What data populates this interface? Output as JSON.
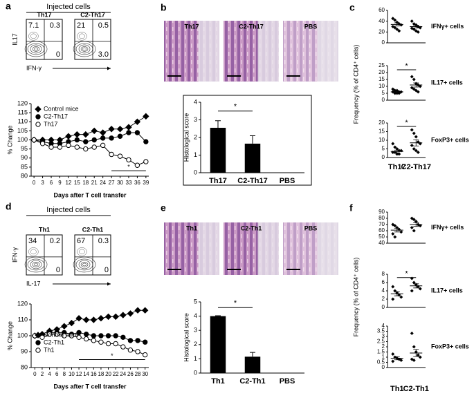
{
  "chart_data": [
    {
      "type": "flow",
      "panel": "a",
      "title": "Injected cells",
      "x_label": "IFN-γ",
      "y_label": "IL17",
      "plots": [
        {
          "name": "Th17",
          "values": [
            7.1,
            0.3,
            0
          ]
        },
        {
          "name": "C2-Th17",
          "values": [
            21,
            0.5,
            3
          ],
          "value_labels": [
            "21",
            "0.5",
            "3.0"
          ]
        }
      ]
    },
    {
      "type": "line",
      "x_label": "Days after T cell transfer",
      "y_label": "% Change",
      "x": [
        0,
        3,
        6,
        9,
        12,
        15,
        18,
        21,
        24,
        27,
        30,
        33,
        36,
        39
      ],
      "xlim": [
        -1,
        40
      ],
      "xticks": [
        0,
        3,
        6,
        9,
        12,
        15,
        18,
        21,
        24,
        27,
        30,
        33,
        36,
        39
      ],
      "ylim": [
        80,
        120
      ],
      "yticks": [
        80,
        85,
        90,
        95,
        100,
        105,
        110,
        115,
        120
      ],
      "legend": "upper left",
      "series": [
        {
          "name": "Control mice",
          "color": "#000000",
          "marker": "diamond",
          "filled": true,
          "values": [
            100,
            100,
            100,
            100,
            102,
            103,
            103,
            105,
            104,
            106,
            106,
            107,
            110,
            113
          ]
        },
        {
          "name": "C2-Th17",
          "color": "#000000",
          "marker": "circle",
          "filled": true,
          "values": [
            100,
            99,
            98,
            98,
            99,
            100,
            99,
            100,
            101,
            101,
            102,
            104,
            104,
            99
          ]
        },
        {
          "name": "Th17",
          "color": "#000000",
          "marker": "circle",
          "filled": false,
          "values": [
            100,
            98,
            96,
            96,
            97,
            96,
            95,
            96,
            97,
            92,
            91,
            89,
            86,
            88
          ]
        }
      ],
      "annotation": "*",
      "annotation_span": [
        27,
        39
      ],
      "annotation_y": 83
    },
    {
      "type": "bar",
      "panel": "b",
      "image_labels": [
        "Th17",
        "C2-Th17",
        "PBS"
      ],
      "y_label": "Histological score",
      "categories": [
        "Th17",
        "C2-Th17",
        "PBS"
      ],
      "values": [
        2.55,
        1.65,
        0
      ],
      "errors": [
        0.4,
        0.45,
        0
      ],
      "color": "#000000",
      "ylim": [
        0,
        4
      ],
      "yticks": [
        0,
        1,
        2,
        3,
        4
      ],
      "frame": true,
      "annotation": "*",
      "annotation_y": 3.5
    },
    {
      "type": "dot",
      "panel": "c",
      "y_label": "Frequency (% of CD4⁺ cells)",
      "categories": [
        "Th17",
        "C2-Th17"
      ],
      "color": "#000000",
      "subplots": [
        {
          "name": "IFNγ+ cells",
          "ylim": [
            0,
            60
          ],
          "yticks": [
            0,
            20,
            40,
            60
          ],
          "groups": [
            [
              45,
              42,
              38,
              35,
              33,
              30,
              28,
              25,
              22
            ],
            [
              40,
              35,
              33,
              30,
              28,
              27,
              25,
              22,
              20
            ]
          ],
          "means": [
            34,
            30
          ],
          "sem": [
            3,
            2.5
          ]
        },
        {
          "name": "IL17+ cells",
          "ylim": [
            0,
            25
          ],
          "yticks": [
            0,
            5,
            10,
            15,
            20,
            25
          ],
          "groups": [
            [
              8,
              7,
              7,
              6,
              6,
              6,
              5,
              5,
              5
            ],
            [
              17,
              15,
              12,
              11,
              10,
              9,
              8,
              7,
              6
            ]
          ],
          "means": [
            6,
            11
          ],
          "sem": [
            0.5,
            1.5
          ],
          "annotation": "*",
          "annotation_y": 22
        },
        {
          "name": "FoxP3+ cells",
          "ylim": [
            0,
            20
          ],
          "yticks": [
            0,
            5,
            10,
            15,
            20
          ],
          "groups": [
            [
              8,
              6,
              5,
              4,
              4,
              3,
              3,
              2,
              2
            ],
            [
              16,
              14,
              12,
              9,
              8,
              7,
              5,
              4,
              3
            ]
          ],
          "means": [
            3.5,
            8.5
          ],
          "sem": [
            0.8,
            1.8
          ],
          "annotation": "*",
          "annotation_y": 18
        }
      ]
    },
    {
      "type": "flow",
      "panel": "d",
      "title": "Injected cells",
      "x_label": "IL-17",
      "y_label": "IFN-γ",
      "plots": [
        {
          "name": "Th1",
          "values": [
            34,
            0.2,
            0
          ]
        },
        {
          "name": "C2-Th1",
          "values": [
            67,
            0.3,
            0
          ]
        }
      ]
    },
    {
      "type": "line",
      "x_label": "Days after T cell transfer",
      "y_label": "% Change",
      "x": [
        0,
        2,
        4,
        6,
        8,
        10,
        12,
        14,
        16,
        18,
        20,
        22,
        24,
        26,
        28,
        30
      ],
      "xlim": [
        -1,
        31
      ],
      "xticks": [
        0,
        2,
        4,
        6,
        8,
        10,
        12,
        14,
        16,
        18,
        20,
        22,
        24,
        26,
        28,
        30
      ],
      "ylim": [
        80,
        120
      ],
      "yticks": [
        80,
        90,
        100,
        110,
        120
      ],
      "legend": "lower left",
      "series": [
        {
          "name": "Control mice",
          "color": "#000000",
          "marker": "diamond",
          "filled": true,
          "values": [
            100,
            101,
            103,
            104,
            106,
            108,
            111,
            110,
            110,
            111,
            112,
            112,
            113,
            114,
            116,
            116
          ]
        },
        {
          "name": "C2-Th1",
          "color": "#000000",
          "marker": "circle",
          "filled": true,
          "values": [
            100,
            100,
            102,
            102,
            102,
            101,
            102,
            101,
            100,
            100,
            100,
            100,
            99,
            97,
            97,
            96
          ]
        },
        {
          "name": "Th1",
          "color": "#000000",
          "marker": "circle",
          "filled": false,
          "values": [
            100,
            99,
            101,
            101,
            100,
            100,
            99,
            98,
            97,
            96,
            95,
            95,
            93,
            91,
            90,
            88
          ]
        }
      ],
      "annotation": "*",
      "annotation_span": [
        12,
        30
      ],
      "annotation_y": 85
    },
    {
      "type": "bar",
      "panel": "e",
      "image_labels": [
        "Th1",
        "C2-Th1",
        "PBS"
      ],
      "y_label": "Histological score",
      "categories": [
        "Th1",
        "C2-Th1",
        "PBS"
      ],
      "values": [
        4.0,
        1.15,
        0
      ],
      "errors": [
        0.03,
        0.3,
        0
      ],
      "color": "#000000",
      "ylim": [
        0,
        5
      ],
      "yticks": [
        0,
        1,
        2,
        3,
        4,
        5
      ],
      "frame": false,
      "annotation": "*",
      "annotation_y": 4.6
    },
    {
      "type": "dot",
      "panel": "f",
      "y_label": "Frequency (% of CD4⁺ cells)",
      "categories": [
        "Th1",
        "C2-Th1"
      ],
      "color": "#000000",
      "subplots": [
        {
          "name": "IFNγ+ cells",
          "ylim": [
            40,
            90
          ],
          "yticks": [
            40,
            50,
            60,
            70,
            80,
            90
          ],
          "groups": [
            [
              70,
              68,
              65,
              62,
              58,
              55,
              50
            ],
            [
              80,
              78,
              75,
              70,
              68,
              65,
              60
            ]
          ],
          "means": [
            61,
            70
          ],
          "sem": [
            3,
            3
          ]
        },
        {
          "name": "IL17+ cells",
          "ylim": [
            0,
            8
          ],
          "yticks": [
            0,
            2,
            4,
            6,
            8
          ],
          "groups": [
            [
              5,
              4,
              3.5,
              3,
              2.5,
              2
            ],
            [
              7,
              6,
              5.5,
              5,
              4.5,
              4
            ]
          ],
          "means": [
            3.3,
            5.2
          ],
          "sem": [
            0.5,
            0.5
          ],
          "annotation": "*",
          "annotation_y": 7.2
        },
        {
          "name": "FoxP3+ cells",
          "ylim": [
            0,
            4
          ],
          "yticks": [
            0,
            0.5,
            1,
            1.5,
            2,
            2.5,
            3,
            3.5,
            4
          ],
          "groups": [
            [
              1.3,
              1.0,
              0.9,
              0.8,
              0.7,
              0.6
            ],
            [
              3.3,
              2,
              1.5,
              1.2,
              1,
              0.8,
              0.7
            ]
          ],
          "means": [
            0.9,
            1.4
          ],
          "sem": [
            0.15,
            0.35
          ]
        }
      ]
    }
  ]
}
